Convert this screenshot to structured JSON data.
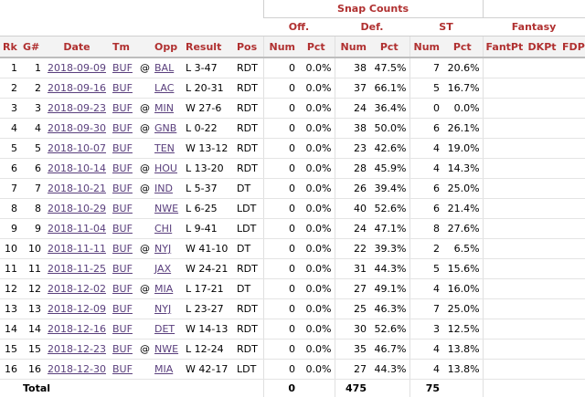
{
  "header": {
    "group_snap": "Snap Counts",
    "group_fantasy": "Fantasy",
    "sub_off": "Off.",
    "sub_def": "Def.",
    "sub_st": "ST"
  },
  "columns": [
    "Rk",
    "G#",
    "Date",
    "Tm",
    "",
    "Opp",
    "Result",
    "Pos",
    "Num",
    "Pct",
    "Num",
    "Pct",
    "Num",
    "Pct",
    "FantPt",
    "DKPt",
    "FDPt"
  ],
  "rows": [
    {
      "rk": "1",
      "g": "1",
      "date": "2018-09-09",
      "tm": "BUF",
      "at": "@",
      "opp": "BAL",
      "result": "L 3-47",
      "pos": "RDT",
      "off_num": "0",
      "off_pct": "0.0%",
      "def_num": "38",
      "def_pct": "47.5%",
      "st_num": "7",
      "st_pct": "20.6%"
    },
    {
      "rk": "2",
      "g": "2",
      "date": "2018-09-16",
      "tm": "BUF",
      "at": "",
      "opp": "LAC",
      "result": "L 20-31",
      "pos": "RDT",
      "off_num": "0",
      "off_pct": "0.0%",
      "def_num": "37",
      "def_pct": "66.1%",
      "st_num": "5",
      "st_pct": "16.7%"
    },
    {
      "rk": "3",
      "g": "3",
      "date": "2018-09-23",
      "tm": "BUF",
      "at": "@",
      "opp": "MIN",
      "result": "W 27-6",
      "pos": "RDT",
      "off_num": "0",
      "off_pct": "0.0%",
      "def_num": "24",
      "def_pct": "36.4%",
      "st_num": "0",
      "st_pct": "0.0%"
    },
    {
      "rk": "4",
      "g": "4",
      "date": "2018-09-30",
      "tm": "BUF",
      "at": "@",
      "opp": "GNB",
      "result": "L 0-22",
      "pos": "RDT",
      "off_num": "0",
      "off_pct": "0.0%",
      "def_num": "38",
      "def_pct": "50.0%",
      "st_num": "6",
      "st_pct": "26.1%"
    },
    {
      "rk": "5",
      "g": "5",
      "date": "2018-10-07",
      "tm": "BUF",
      "at": "",
      "opp": "TEN",
      "result": "W 13-12",
      "pos": "RDT",
      "off_num": "0",
      "off_pct": "0.0%",
      "def_num": "23",
      "def_pct": "42.6%",
      "st_num": "4",
      "st_pct": "19.0%"
    },
    {
      "rk": "6",
      "g": "6",
      "date": "2018-10-14",
      "tm": "BUF",
      "at": "@",
      "opp": "HOU",
      "result": "L 13-20",
      "pos": "RDT",
      "off_num": "0",
      "off_pct": "0.0%",
      "def_num": "28",
      "def_pct": "45.9%",
      "st_num": "4",
      "st_pct": "14.3%"
    },
    {
      "rk": "7",
      "g": "7",
      "date": "2018-10-21",
      "tm": "BUF",
      "at": "@",
      "opp": "IND",
      "result": "L 5-37",
      "pos": "DT",
      "off_num": "0",
      "off_pct": "0.0%",
      "def_num": "26",
      "def_pct": "39.4%",
      "st_num": "6",
      "st_pct": "25.0%"
    },
    {
      "rk": "8",
      "g": "8",
      "date": "2018-10-29",
      "tm": "BUF",
      "at": "",
      "opp": "NWE",
      "result": "L 6-25",
      "pos": "LDT",
      "off_num": "0",
      "off_pct": "0.0%",
      "def_num": "40",
      "def_pct": "52.6%",
      "st_num": "6",
      "st_pct": "21.4%"
    },
    {
      "rk": "9",
      "g": "9",
      "date": "2018-11-04",
      "tm": "BUF",
      "at": "",
      "opp": "CHI",
      "result": "L 9-41",
      "pos": "LDT",
      "off_num": "0",
      "off_pct": "0.0%",
      "def_num": "24",
      "def_pct": "47.1%",
      "st_num": "8",
      "st_pct": "27.6%"
    },
    {
      "rk": "10",
      "g": "10",
      "date": "2018-11-11",
      "tm": "BUF",
      "at": "@",
      "opp": "NYJ",
      "result": "W 41-10",
      "pos": "DT",
      "off_num": "0",
      "off_pct": "0.0%",
      "def_num": "22",
      "def_pct": "39.3%",
      "st_num": "2",
      "st_pct": "6.5%"
    },
    {
      "rk": "11",
      "g": "11",
      "date": "2018-11-25",
      "tm": "BUF",
      "at": "",
      "opp": "JAX",
      "result": "W 24-21",
      "pos": "RDT",
      "off_num": "0",
      "off_pct": "0.0%",
      "def_num": "31",
      "def_pct": "44.3%",
      "st_num": "5",
      "st_pct": "15.6%"
    },
    {
      "rk": "12",
      "g": "12",
      "date": "2018-12-02",
      "tm": "BUF",
      "at": "@",
      "opp": "MIA",
      "result": "L 17-21",
      "pos": "DT",
      "off_num": "0",
      "off_pct": "0.0%",
      "def_num": "27",
      "def_pct": "49.1%",
      "st_num": "4",
      "st_pct": "16.0%"
    },
    {
      "rk": "13",
      "g": "13",
      "date": "2018-12-09",
      "tm": "BUF",
      "at": "",
      "opp": "NYJ",
      "result": "L 23-27",
      "pos": "RDT",
      "off_num": "0",
      "off_pct": "0.0%",
      "def_num": "25",
      "def_pct": "46.3%",
      "st_num": "7",
      "st_pct": "25.0%"
    },
    {
      "rk": "14",
      "g": "14",
      "date": "2018-12-16",
      "tm": "BUF",
      "at": "",
      "opp": "DET",
      "result": "W 14-13",
      "pos": "RDT",
      "off_num": "0",
      "off_pct": "0.0%",
      "def_num": "30",
      "def_pct": "52.6%",
      "st_num": "3",
      "st_pct": "12.5%"
    },
    {
      "rk": "15",
      "g": "15",
      "date": "2018-12-23",
      "tm": "BUF",
      "at": "@",
      "opp": "NWE",
      "result": "L 12-24",
      "pos": "RDT",
      "off_num": "0",
      "off_pct": "0.0%",
      "def_num": "35",
      "def_pct": "46.7%",
      "st_num": "4",
      "st_pct": "13.8%"
    },
    {
      "rk": "16",
      "g": "16",
      "date": "2018-12-30",
      "tm": "BUF",
      "at": "",
      "opp": "MIA",
      "result": "W 42-17",
      "pos": "LDT",
      "off_num": "0",
      "off_pct": "0.0%",
      "def_num": "27",
      "def_pct": "44.3%",
      "st_num": "4",
      "st_pct": "13.8%"
    }
  ],
  "total": {
    "label": "Total",
    "off_num": "0",
    "def_num": "475",
    "st_num": "75"
  }
}
